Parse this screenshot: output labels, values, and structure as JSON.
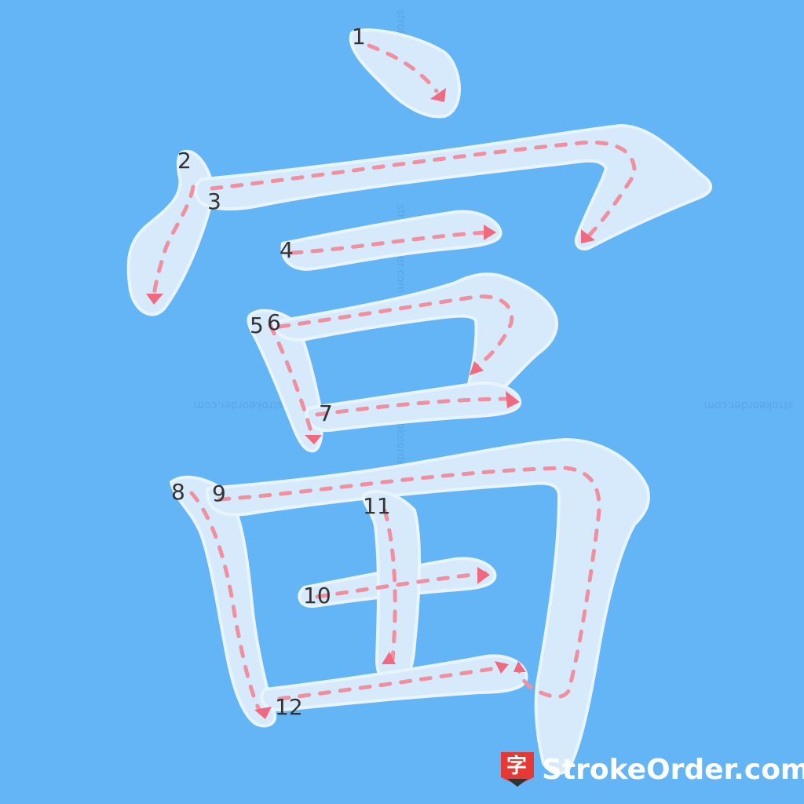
{
  "character": "富",
  "stroke_count": 12,
  "stroke_numbers": [
    "1",
    "2",
    "3",
    "4",
    "5",
    "6",
    "7",
    "8",
    "9",
    "10",
    "11",
    "12"
  ],
  "watermark": "strokeorder.com",
  "brand": {
    "name": "StrokeOrder.com",
    "logo_char": "字"
  },
  "colors": {
    "background": "#64b5f6",
    "stroke_fill": "#d6eafc",
    "guide": "#ef8f9f",
    "arrow": "#ef6a80",
    "logo_red": "#e53935"
  }
}
